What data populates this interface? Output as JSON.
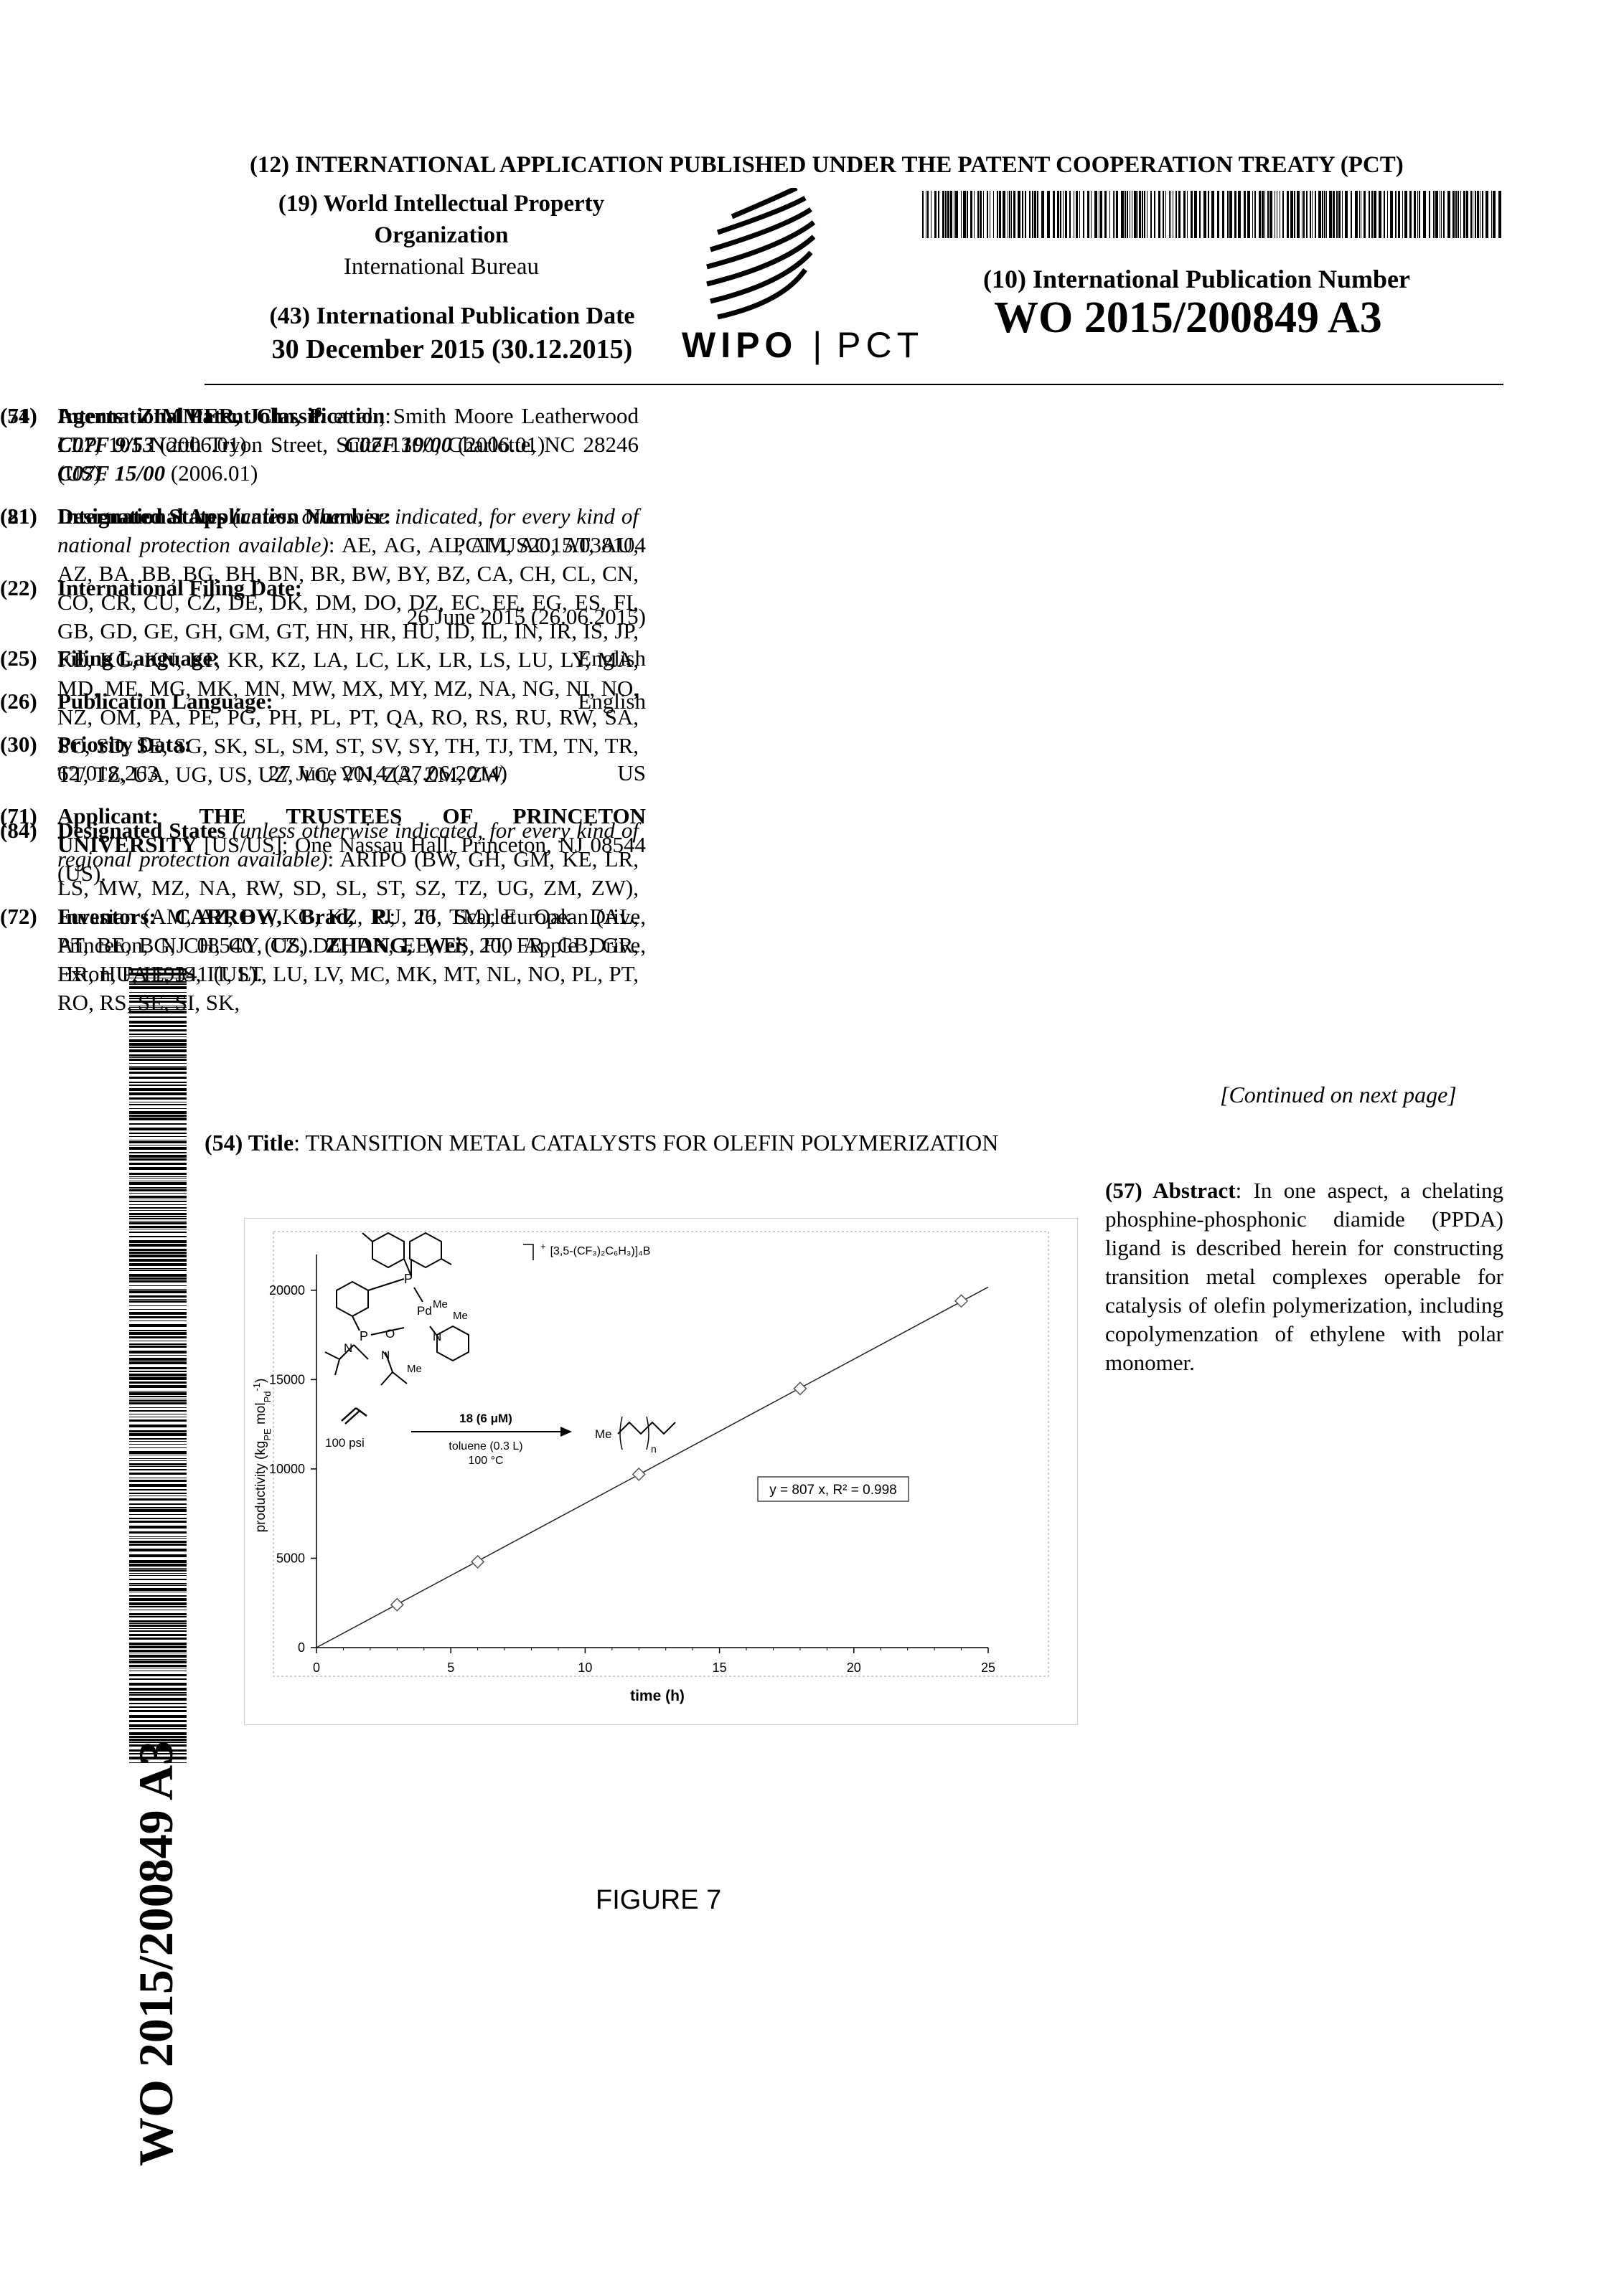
{
  "header": {
    "line12": "(12) INTERNATIONAL APPLICATION PUBLISHED UNDER THE PATENT COOPERATION TREATY (PCT)",
    "org_line1": "(19) World Intellectual Property",
    "org_line2": "Organization",
    "org_line3": "International Bureau",
    "pubdate_label": "(43) International Publication Date",
    "pubdate_value": "30 December 2015 (30.12.2015)",
    "wipo": "WIPO",
    "pct_sep": "|",
    "pct": "PCT",
    "pubnum_label": "(10) International Publication Number",
    "pubnum": "WO 2015/200849 A3"
  },
  "left_column": {
    "f51_num": "(51)",
    "f51_label": "International Patent Classification",
    "f51_colon": ":",
    "f51_c1": "C07F 9/53",
    "f51_c1_date": "(2006.01)",
    "f51_c2": "C07F 19/00",
    "f51_c2_date": "(2006.01)",
    "f51_c3": "C07F 15/00",
    "f51_c3_date": "(2006.01)",
    "f21_num": "(21)",
    "f21_label": "International Application Number:",
    "f21_value": "PCT/US2015/038104",
    "f22_num": "(22)",
    "f22_label": "International Filing Date:",
    "f22_value": "26 June 2015 (26.06.2015)",
    "f25_num": "(25)",
    "f25_label": "Filing Language:",
    "f25_value": "English",
    "f26_num": "(26)",
    "f26_label": "Publication Language:",
    "f26_value": "English",
    "f30_num": "(30)",
    "f30_label": "Priority Data:",
    "f30_number": "62/018,263",
    "f30_date": "27 June 2014 (27.06.2014)",
    "f30_country": "US",
    "f71_num": "(71)",
    "f71_label": "Applicant:",
    "f71_name": "THE TRUSTEES OF PRINCETON UNIVERSITY",
    "f71_rest": "[US/US]; One Nassau Hall, Princeton, NJ 08544 (US).",
    "f72_num": "(72)",
    "f72_label": "Inventors:",
    "f72_name1": "CARROW, Brad, P.",
    "f72_addr1": "; 26 Scarlet Oak Drive, Princeton, NJ 08540 (US).",
    "f72_name2": "ZHANG, Wei",
    "f72_addr2": "; 200 Apple Drive, Exton, PA 19341 (US)."
  },
  "right_column": {
    "f74_num": "(74)",
    "f74_label": "Agents:",
    "f74_name": "ZIMMER, John, P.",
    "f74_rest": "et al.; Smith Moore Leatherwood LLP, 101 North Tryon Street, Suite 1300, Charlotte, NC 28246 (US).",
    "f81_num": "(81)",
    "f81_label": "Designated States",
    "f81_note": "(unless otherwise indicated, for every kind of national protection available)",
    "f81_list": ": AE, AG, AL, AM, AO, AT, AU, AZ, BA, BB, BG, BH, BN, BR, BW, BY, BZ, CA, CH, CL, CN, CO, CR, CU, CZ, DE, DK, DM, DO, DZ, EC, EE, EG, ES, FI, GB, GD, GE, GH, GM, GT, HN, HR, HU, ID, IL, IN, IR, IS, JP, KE, KG, KN, KP, KR, KZ, LA, LC, LK, LR, LS, LU, LY, MA, MD, ME, MG, MK, MN, MW, MX, MY, MZ, NA, NG, NI, NO, NZ, OM, PA, PE, PG, PH, PL, PT, QA, RO, RS, RU, RW, SA, SC, SD, SE, SG, SK, SL, SM, ST, SV, SY, TH, TJ, TM, TN, TR, TT, TZ, UA, UG, US, UZ, VC, VN, ZA, ZM, ZW.",
    "f84_num": "(84)",
    "f84_label": "Designated States",
    "f84_note": "(unless otherwise indicated, for every kind of regional protection available)",
    "f84_list": ": ARIPO (BW, GH, GM, KE, LR, LS, MW, MZ, NA, RW, SD, SL, ST, SZ, TZ, UG, ZM, ZW), Eurasian (AM, AZ, BY, KG, KZ, RU, TJ, TM), European (AL, AT, BE, BG, CH, CY, CZ, DE, DK, EE, ES, FI, FR, GB, GR, HR, HU, IE, IS, IT, LT, LU, LV, MC, MK, MT, NL, NO, PL, PT, RO, RS, SE, SI, SK,",
    "continued": "[Continued on next page]"
  },
  "title": {
    "num": "(54) Title",
    "colon": ":",
    "text": "TRANSITION METAL CATALYSTS FOR OLEFIN POLYMERIZATION"
  },
  "abstract": {
    "label": "(57) Abstract",
    "colon": ":",
    "text": "In one aspect, a chelating phosphine-phosphonic diamide (PPDA) ligand is described herein for constructing transition metal complexes operable for catalysis of olefin polymerization, including copolymenzation of ethylene with polar monomer."
  },
  "figure_caption": "FIGURE 7",
  "side_number": "WO 2015/200849 A3",
  "chart_data": {
    "type": "scatter",
    "x": [
      3,
      6,
      12,
      18,
      24
    ],
    "y": [
      2400,
      4800,
      9700,
      14500,
      19400
    ],
    "fit_label": "y = 807 x, R² = 0.998",
    "fit_slope": 807,
    "xlabel": "time (h)",
    "ylabel": "productivity (kg",
    "ylabel_sub1": "PE",
    "ylabel_mid": " mol",
    "ylabel_sub2": "Pd",
    "ylabel_sup": "-1",
    "ylabel_end": ")",
    "xlim": [
      0,
      25
    ],
    "ylim": [
      0,
      22000
    ],
    "xticks": [
      "0",
      "5",
      "10",
      "15",
      "20",
      "25"
    ],
    "yticks": [
      "0",
      "5000",
      "10000",
      "15000",
      "20000"
    ],
    "grid": false,
    "scheme": {
      "pressure": "100 psi",
      "catalyst": "18 (6 μM)",
      "conditions1": "toluene (0.3 L)",
      "conditions2": "100 °C",
      "product_me": "Me",
      "product_n": "n",
      "anion": "[3,5-(CF₃)₂C₆H₃)]₄B",
      "charge": "+",
      "atom_p1": "P",
      "atom_pd": "Pd",
      "atom_p2": "P",
      "atom_o": "O",
      "atom_n1": "N",
      "atom_n2": "N",
      "atom_n3": "N",
      "atom_me1": "Me",
      "atom_me2": "Me",
      "atom_me3": "Me"
    }
  }
}
